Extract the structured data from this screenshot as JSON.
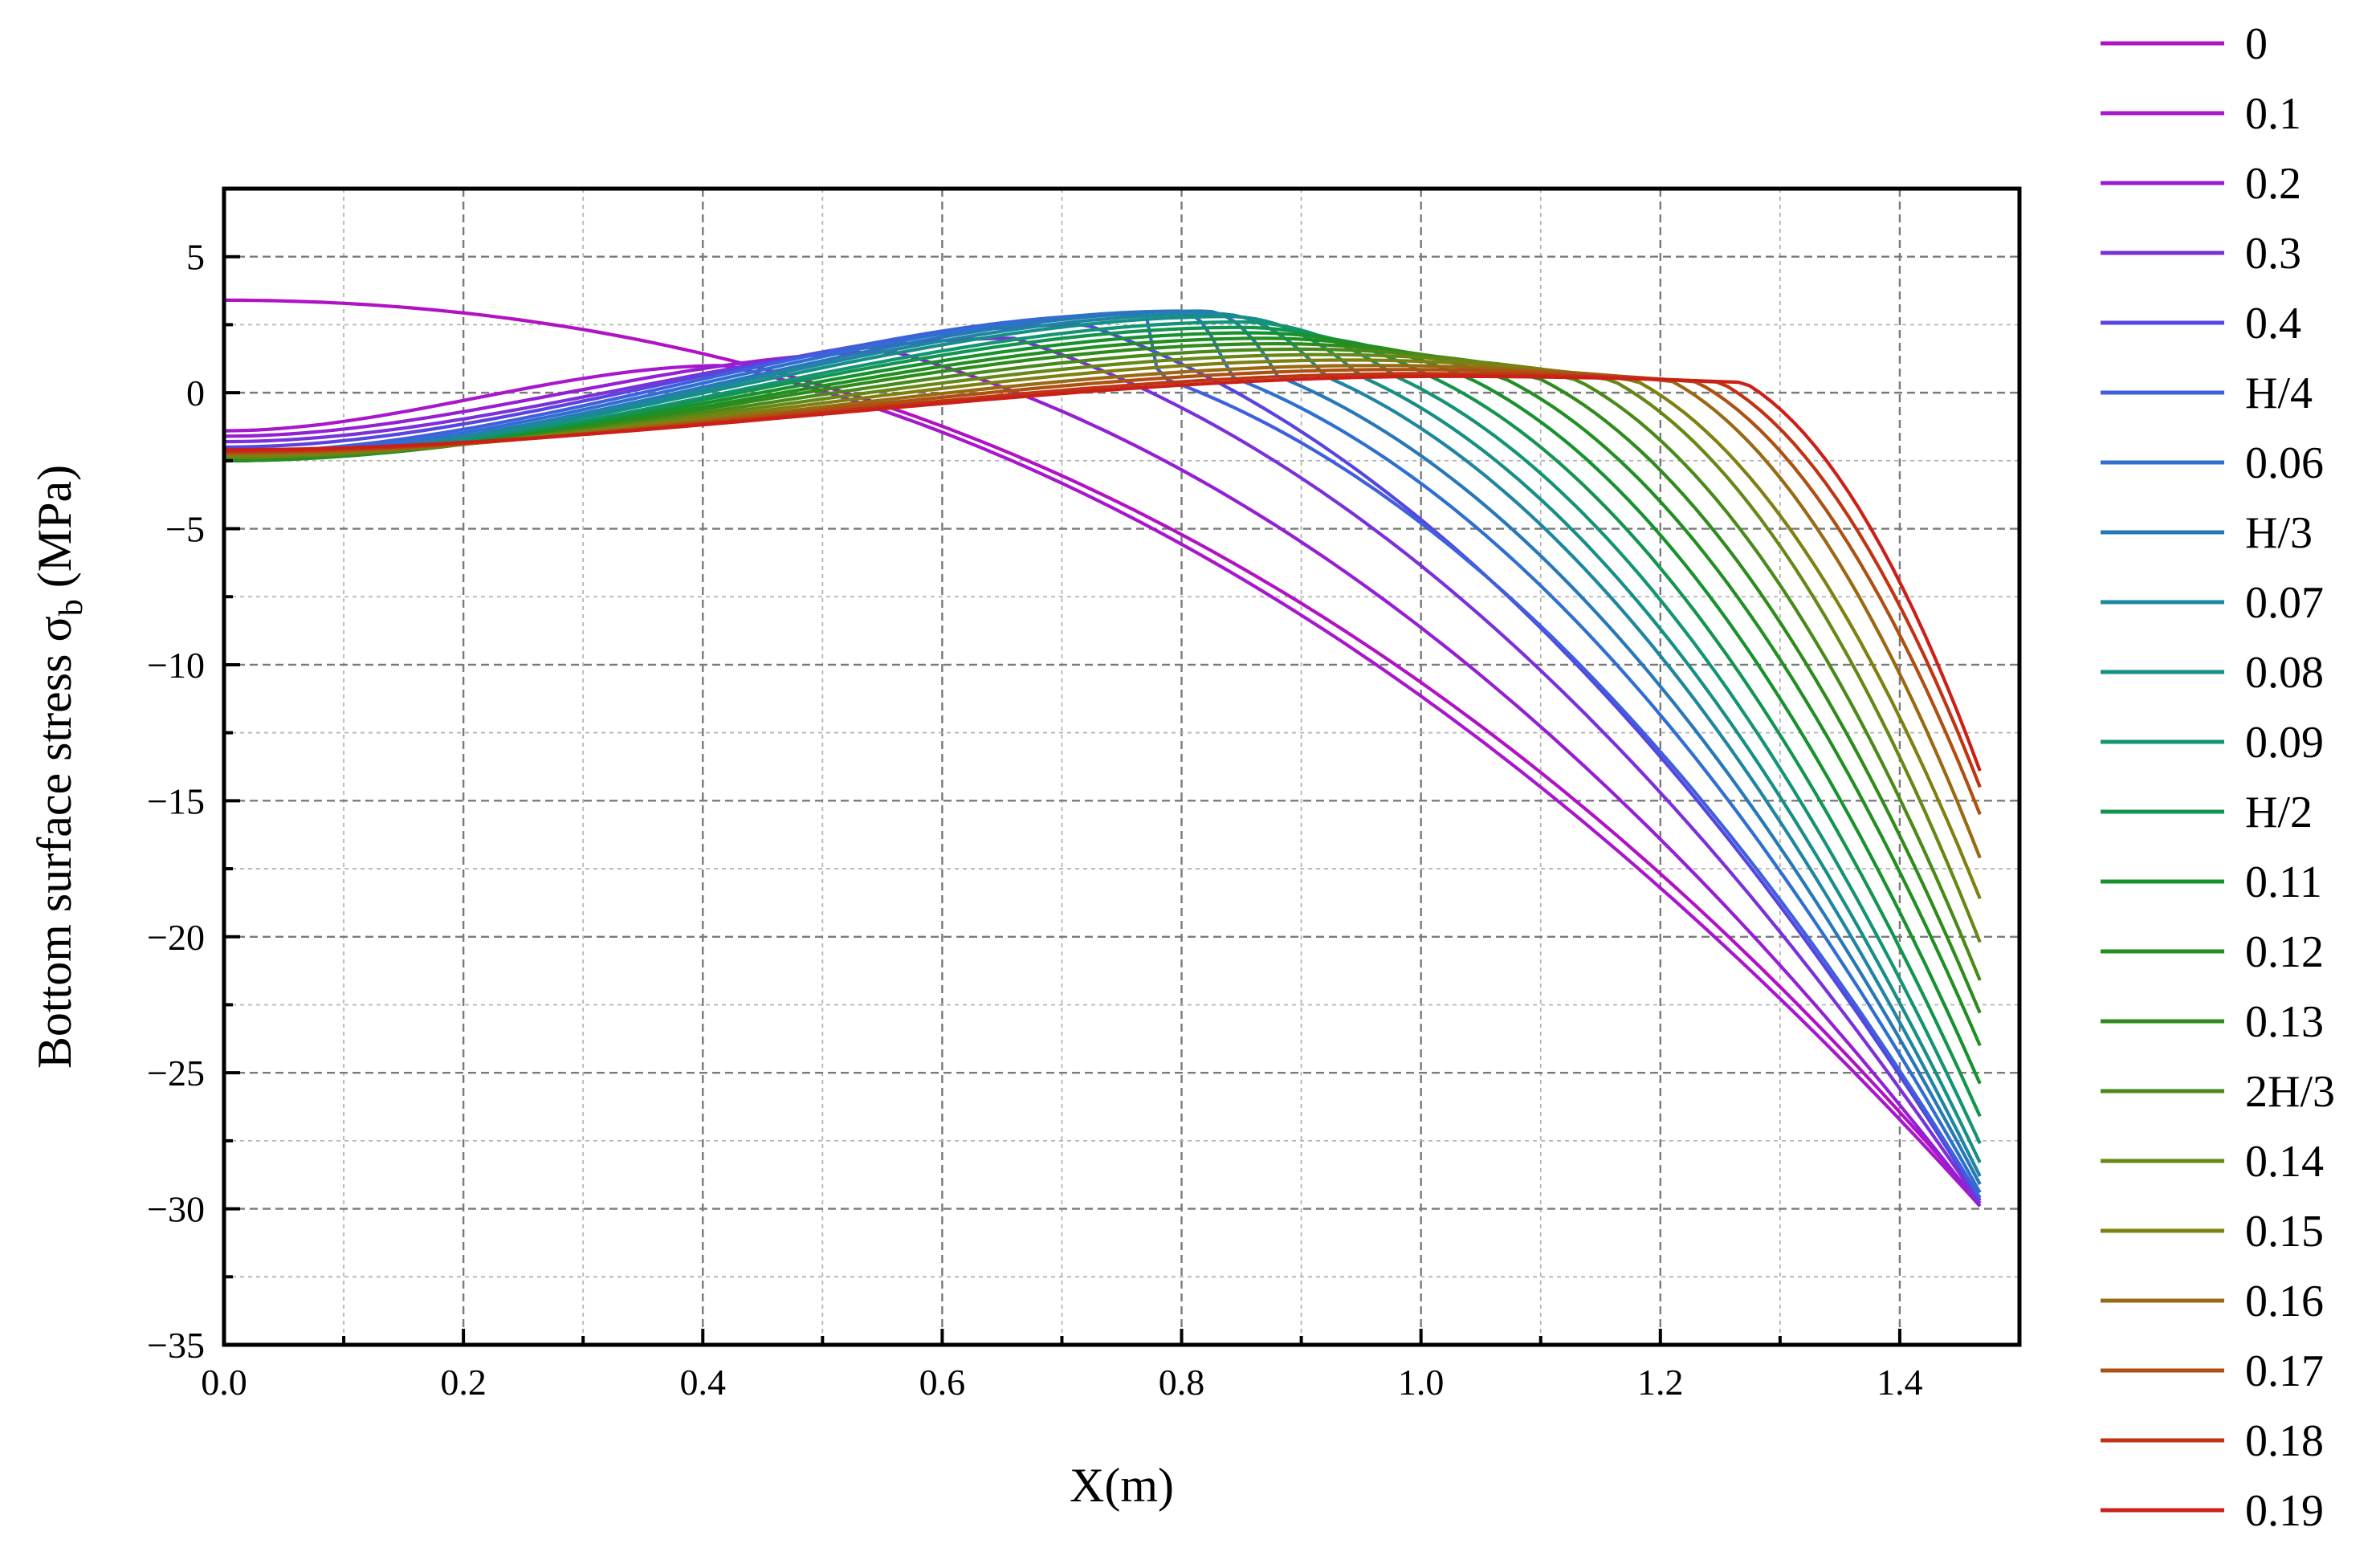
{
  "chart_data": {
    "type": "line",
    "title": "",
    "xlabel": "X(m)",
    "ylabel_main": "Bottom surface stress σ",
    "ylabel_sub": "b",
    "ylabel_unit": "(MPa)",
    "xlim": [
      0,
      1.5
    ],
    "ylim": [
      -35,
      7.5
    ],
    "xticks": [
      0,
      0.2,
      0.4,
      0.6,
      0.8,
      1.0,
      1.2,
      1.4
    ],
    "xtick_labels": [
      "0.0",
      "0.2",
      "0.4",
      "0.6",
      "0.8",
      "1.0",
      "1.2",
      "1.4"
    ],
    "yticks": [
      5,
      0,
      -5,
      -10,
      -15,
      -20,
      -25,
      -30,
      -35
    ],
    "ytick_labels": [
      "5",
      "0",
      "−5",
      "−10",
      "−15",
      "−20",
      "−25",
      "−30",
      "−35"
    ],
    "grid": true,
    "legend_position": "right-outside",
    "x_end": 1.467,
    "series": [
      {
        "name": "0",
        "color": "#b012c4",
        "y0": 3.4,
        "peak": 3.4,
        "xp": 0.0,
        "xb": 0.0,
        "yend": -29.8
      },
      {
        "name": "0.1",
        "color": "#a817cd",
        "y0": -1.4,
        "peak": 1.0,
        "xp": 0.42,
        "xb": 0.42,
        "yend": -29.9
      },
      {
        "name": "0.2",
        "color": "#951fd2",
        "y0": -1.6,
        "peak": 1.5,
        "xp": 0.56,
        "xb": 0.56,
        "yend": -29.9
      },
      {
        "name": "0.3",
        "color": "#7c30d9",
        "y0": -1.8,
        "peak": 2.0,
        "xp": 0.66,
        "xb": 0.66,
        "yend": -29.8
      },
      {
        "name": "0.4",
        "color": "#5844df",
        "y0": -2.0,
        "peak": 2.5,
        "xp": 0.72,
        "xb": 0.72,
        "yend": -29.7
      },
      {
        "name": "H/4",
        "color": "#3f60dd",
        "y0": -2.2,
        "peak": 2.9,
        "xp": 0.77,
        "xb": 0.78,
        "yend": -29.6
      },
      {
        "name": "0.06",
        "color": "#2f6fcf",
        "y0": -2.3,
        "peak": 3.0,
        "xp": 0.8,
        "xb": 0.84,
        "yend": -29.4
      },
      {
        "name": "H/3",
        "color": "#2878b8",
        "y0": -2.4,
        "peak": 3.0,
        "xp": 0.82,
        "xb": 0.88,
        "yend": -29.1
      },
      {
        "name": "0.07",
        "color": "#1e86a0",
        "y0": -2.4,
        "peak": 2.9,
        "xp": 0.83,
        "xb": 0.92,
        "yend": -28.8
      },
      {
        "name": "0.08",
        "color": "#168f86",
        "y0": -2.45,
        "peak": 2.8,
        "xp": 0.84,
        "xb": 0.95,
        "yend": -28.3
      },
      {
        "name": "0.09",
        "color": "#139474",
        "y0": -2.5,
        "peak": 2.6,
        "xp": 0.85,
        "xb": 0.98,
        "yend": -27.6
      },
      {
        "name": "H/2",
        "color": "#13954f",
        "y0": -2.5,
        "peak": 2.4,
        "xp": 0.85,
        "xb": 1.01,
        "yend": -26.6
      },
      {
        "name": "0.11",
        "color": "#17922f",
        "y0": -2.5,
        "peak": 2.2,
        "xp": 0.86,
        "xb": 1.04,
        "yend": -25.4
      },
      {
        "name": "0.12",
        "color": "#228f22",
        "y0": -2.5,
        "peak": 2.0,
        "xp": 0.87,
        "xb": 1.07,
        "yend": -24.0
      },
      {
        "name": "0.13",
        "color": "#2f8c1c",
        "y0": -2.45,
        "peak": 1.8,
        "xp": 0.88,
        "xb": 1.1,
        "yend": -22.8
      },
      {
        "name": "2H/3",
        "color": "#4a8a1a",
        "y0": -2.4,
        "peak": 1.6,
        "xp": 0.9,
        "xb": 1.13,
        "yend": -21.6
      },
      {
        "name": "0.14",
        "color": "#668816",
        "y0": -2.35,
        "peak": 1.4,
        "xp": 0.92,
        "xb": 1.16,
        "yend": -20.2
      },
      {
        "name": "0.15",
        "color": "#7f8012",
        "y0": -2.3,
        "peak": 1.2,
        "xp": 0.94,
        "xb": 1.18,
        "yend": -18.6
      },
      {
        "name": "0.16",
        "color": "#996914",
        "y0": -2.25,
        "peak": 1.0,
        "xp": 0.96,
        "xb": 1.21,
        "yend": -17.1
      },
      {
        "name": "0.17",
        "color": "#ad5113",
        "y0": -2.2,
        "peak": 0.85,
        "xp": 0.98,
        "xb": 1.23,
        "yend": -15.5
      },
      {
        "name": "0.18",
        "color": "#bf3513",
        "y0": -2.15,
        "peak": 0.7,
        "xp": 1.0,
        "xb": 1.25,
        "yend": -14.5
      },
      {
        "name": "0.19",
        "color": "#cc1f18",
        "y0": -2.1,
        "peak": 0.6,
        "xp": 1.02,
        "xb": 1.27,
        "yend": -13.9
      }
    ]
  }
}
